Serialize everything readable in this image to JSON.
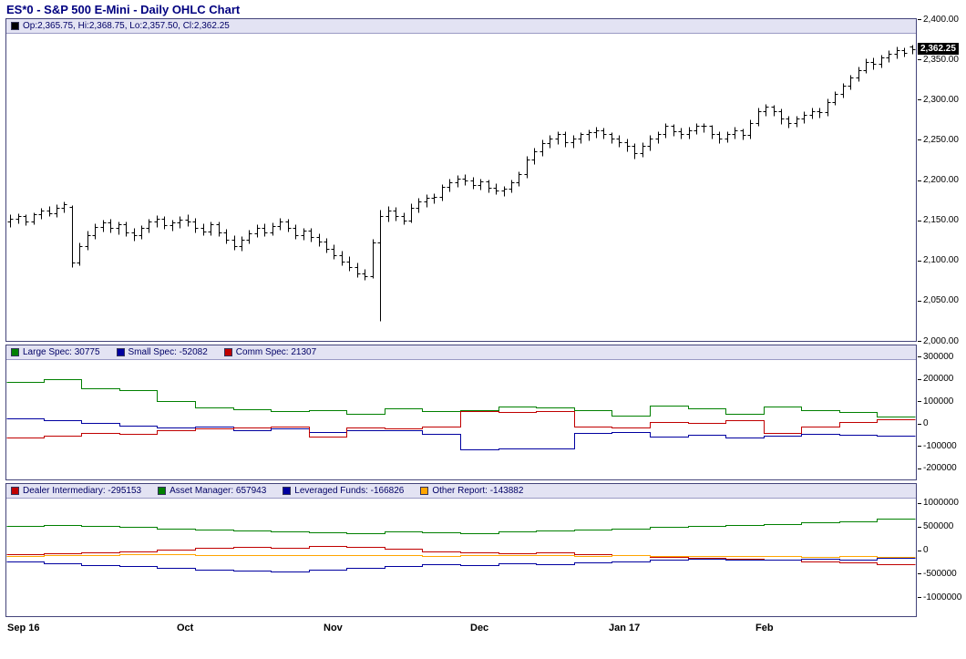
{
  "title": "ES*0 - S&P 500 E-Mini - Daily OHLC Chart",
  "last_price_flag": "2,362.25",
  "colors": {
    "bar": "#000000",
    "large_spec": "#008000",
    "small_spec": "#0000A0",
    "comm_spec": "#C00000",
    "dealer": "#C00000",
    "asset_manager": "#008000",
    "leveraged": "#0000A0",
    "other": "#FFA500"
  },
  "chart_data": [
    {
      "type": "ohlc",
      "panel": "price",
      "legend": "Op:2,365.75, Hi:2,368.75, Lo:2,357.50, Cl:2,362.25",
      "last_open": 2365.75,
      "last_high": 2368.75,
      "last_low": 2357.5,
      "last_close": 2362.25,
      "ylim": [
        2000,
        2400
      ],
      "yticks": [
        {
          "v": 2400,
          "label": "2,400.00"
        },
        {
          "v": 2350,
          "label": "2,350.00"
        },
        {
          "v": 2300,
          "label": "2,300.00"
        },
        {
          "v": 2250,
          "label": "2,250.00"
        },
        {
          "v": 2200,
          "label": "2,200.00"
        },
        {
          "v": 2150,
          "label": "2,150.00"
        },
        {
          "v": 2100,
          "label": "2,100.00"
        },
        {
          "v": 2050,
          "label": "2,050.00"
        },
        {
          "v": 2000,
          "label": "2,000.00"
        }
      ],
      "xticks": [
        {
          "label": "Sep 16",
          "bar_index": 0
        },
        {
          "label": "Oct",
          "bar_index": 22
        },
        {
          "label": "Nov",
          "bar_index": 41
        },
        {
          "label": "Dec",
          "bar_index": 60
        },
        {
          "label": "Jan 17",
          "bar_index": 78
        },
        {
          "label": "Feb",
          "bar_index": 97
        }
      ],
      "ohlc": [
        [
          2148,
          2157,
          2142,
          2152
        ],
        [
          2152,
          2159,
          2146,
          2155
        ],
        [
          2155,
          2158,
          2144,
          2148
        ],
        [
          2148,
          2160,
          2145,
          2157
        ],
        [
          2157,
          2166,
          2152,
          2162
        ],
        [
          2162,
          2168,
          2155,
          2159
        ],
        [
          2159,
          2170,
          2154,
          2166
        ],
        [
          2166,
          2173,
          2160,
          2170
        ],
        [
          2167,
          2169,
          2092,
          2098
        ],
        [
          2098,
          2122,
          2094,
          2118
        ],
        [
          2118,
          2137,
          2113,
          2132
        ],
        [
          2132,
          2146,
          2127,
          2142
        ],
        [
          2142,
          2151,
          2136,
          2147
        ],
        [
          2147,
          2152,
          2135,
          2140
        ],
        [
          2140,
          2149,
          2133,
          2145
        ],
        [
          2145,
          2148,
          2130,
          2135
        ],
        [
          2135,
          2141,
          2125,
          2131
        ],
        [
          2131,
          2144,
          2127,
          2140
        ],
        [
          2140,
          2152,
          2135,
          2148
        ],
        [
          2148,
          2156,
          2142,
          2152
        ],
        [
          2152,
          2155,
          2139,
          2144
        ],
        [
          2144,
          2151,
          2137,
          2147
        ],
        [
          2147,
          2155,
          2141,
          2151
        ],
        [
          2151,
          2157,
          2143,
          2149
        ],
        [
          2149,
          2153,
          2135,
          2140
        ],
        [
          2140,
          2146,
          2131,
          2136
        ],
        [
          2136,
          2149,
          2132,
          2145
        ],
        [
          2145,
          2148,
          2130,
          2135
        ],
        [
          2135,
          2139,
          2121,
          2126
        ],
        [
          2126,
          2131,
          2113,
          2118
        ],
        [
          2118,
          2130,
          2112,
          2126
        ],
        [
          2126,
          2138,
          2121,
          2134
        ],
        [
          2134,
          2145,
          2129,
          2141
        ],
        [
          2141,
          2146,
          2130,
          2135
        ],
        [
          2135,
          2147,
          2131,
          2143
        ],
        [
          2143,
          2153,
          2138,
          2149
        ],
        [
          2149,
          2152,
          2136,
          2141
        ],
        [
          2141,
          2145,
          2127,
          2132
        ],
        [
          2132,
          2141,
          2126,
          2137
        ],
        [
          2137,
          2140,
          2124,
          2129
        ],
        [
          2129,
          2134,
          2118,
          2123
        ],
        [
          2123,
          2128,
          2110,
          2115
        ],
        [
          2115,
          2120,
          2102,
          2107
        ],
        [
          2107,
          2112,
          2094,
          2099
        ],
        [
          2099,
          2105,
          2087,
          2092
        ],
        [
          2092,
          2097,
          2079,
          2084
        ],
        [
          2084,
          2090,
          2076,
          2081
        ],
        [
          2081,
          2127,
          2078,
          2122
        ],
        [
          2122,
          2163,
          2025,
          2155
        ],
        [
          2155,
          2168,
          2148,
          2162
        ],
        [
          2162,
          2167,
          2150,
          2155
        ],
        [
          2155,
          2160,
          2145,
          2150
        ],
        [
          2150,
          2171,
          2147,
          2166
        ],
        [
          2166,
          2178,
          2160,
          2173
        ],
        [
          2173,
          2182,
          2167,
          2178
        ],
        [
          2178,
          2184,
          2171,
          2179
        ],
        [
          2179,
          2195,
          2175,
          2191
        ],
        [
          2191,
          2202,
          2186,
          2197
        ],
        [
          2197,
          2206,
          2192,
          2202
        ],
        [
          2202,
          2207,
          2194,
          2199
        ],
        [
          2199,
          2204,
          2189,
          2194
        ],
        [
          2194,
          2202,
          2188,
          2198
        ],
        [
          2198,
          2201,
          2185,
          2190
        ],
        [
          2190,
          2196,
          2182,
          2187
        ],
        [
          2187,
          2193,
          2180,
          2189
        ],
        [
          2189,
          2201,
          2185,
          2197
        ],
        [
          2197,
          2211,
          2193,
          2207
        ],
        [
          2207,
          2230,
          2203,
          2226
        ],
        [
          2226,
          2240,
          2220,
          2236
        ],
        [
          2236,
          2250,
          2230,
          2246
        ],
        [
          2246,
          2256,
          2240,
          2252
        ],
        [
          2252,
          2261,
          2245,
          2257
        ],
        [
          2257,
          2261,
          2241,
          2247
        ],
        [
          2247,
          2256,
          2240,
          2252
        ],
        [
          2252,
          2260,
          2246,
          2257
        ],
        [
          2257,
          2263,
          2249,
          2259
        ],
        [
          2259,
          2266,
          2253,
          2262
        ],
        [
          2262,
          2265,
          2251,
          2257
        ],
        [
          2257,
          2260,
          2246,
          2252
        ],
        [
          2252,
          2256,
          2241,
          2247
        ],
        [
          2247,
          2251,
          2236,
          2242
        ],
        [
          2242,
          2246,
          2227,
          2233
        ],
        [
          2233,
          2247,
          2229,
          2243
        ],
        [
          2243,
          2256,
          2237,
          2252
        ],
        [
          2252,
          2261,
          2246,
          2257
        ],
        [
          2257,
          2271,
          2253,
          2267
        ],
        [
          2267,
          2270,
          2255,
          2261
        ],
        [
          2261,
          2265,
          2251,
          2257
        ],
        [
          2257,
          2266,
          2252,
          2262
        ],
        [
          2262,
          2271,
          2257,
          2267
        ],
        [
          2267,
          2271,
          2259,
          2267
        ],
        [
          2267,
          2269,
          2251,
          2257
        ],
        [
          2257,
          2261,
          2246,
          2252
        ],
        [
          2252,
          2261,
          2247,
          2257
        ],
        [
          2257,
          2266,
          2252,
          2262
        ],
        [
          2262,
          2264,
          2250,
          2256
        ],
        [
          2256,
          2275,
          2252,
          2271
        ],
        [
          2271,
          2290,
          2267,
          2286
        ],
        [
          2286,
          2295,
          2280,
          2291
        ],
        [
          2291,
          2293,
          2280,
          2286
        ],
        [
          2286,
          2289,
          2270,
          2276
        ],
        [
          2276,
          2280,
          2265,
          2271
        ],
        [
          2271,
          2280,
          2266,
          2276
        ],
        [
          2276,
          2285,
          2271,
          2281
        ],
        [
          2281,
          2290,
          2276,
          2286
        ],
        [
          2286,
          2290,
          2278,
          2284
        ],
        [
          2284,
          2301,
          2280,
          2297
        ],
        [
          2297,
          2311,
          2293,
          2307
        ],
        [
          2307,
          2321,
          2303,
          2317
        ],
        [
          2317,
          2331,
          2313,
          2327
        ],
        [
          2327,
          2341,
          2323,
          2337
        ],
        [
          2337,
          2351,
          2333,
          2347
        ],
        [
          2347,
          2352,
          2338,
          2344
        ],
        [
          2344,
          2356,
          2340,
          2352
        ],
        [
          2352,
          2361,
          2347,
          2357
        ],
        [
          2357,
          2366,
          2351,
          2362
        ],
        [
          2362,
          2365,
          2353,
          2358
        ],
        [
          2365.75,
          2368.75,
          2357.5,
          2362.25
        ]
      ]
    },
    {
      "type": "step",
      "panel": "commitment-of-traders",
      "ylim": [
        -250000,
        350000
      ],
      "yticks": [
        {
          "v": 300000,
          "label": "300000"
        },
        {
          "v": 200000,
          "label": "200000"
        },
        {
          "v": 100000,
          "label": "100000"
        },
        {
          "v": 0,
          "label": "0"
        },
        {
          "v": -100000,
          "label": "-100000"
        },
        {
          "v": -200000,
          "label": "-200000"
        }
      ],
      "series": [
        {
          "name": "Large Spec",
          "value": 30775,
          "label": "Large Spec: 30775",
          "color_key": "large_spec",
          "values": [
            185000,
            200000,
            160000,
            148000,
            100000,
            72000,
            65000,
            55000,
            60000,
            45000,
            70000,
            55000,
            62000,
            78000,
            72000,
            60000,
            35000,
            80000,
            68000,
            42000,
            76000,
            60000,
            52000,
            30775
          ]
        },
        {
          "name": "Small Spec",
          "value": -52082,
          "label": "Small Spec: -52082",
          "color_key": "small_spec",
          "values": [
            25000,
            15000,
            5000,
            -8000,
            -18000,
            -12000,
            -28000,
            -22000,
            -38000,
            -30000,
            -28000,
            -45000,
            -115000,
            -110000,
            -112000,
            -42000,
            -38000,
            -58000,
            -52000,
            -62000,
            -55000,
            -45000,
            -50000,
            -52082
          ]
        },
        {
          "name": "Comm Spec",
          "value": 21307,
          "label": "Comm Spec: 21307",
          "color_key": "comm_spec",
          "values": [
            -62000,
            -55000,
            -42000,
            -45000,
            -28000,
            -22000,
            -18000,
            -12000,
            -58000,
            -18000,
            -22000,
            -12000,
            58000,
            54000,
            58000,
            -12000,
            -18000,
            8000,
            5000,
            15000,
            -42000,
            -12000,
            8000,
            21307
          ]
        }
      ]
    },
    {
      "type": "step",
      "panel": "disaggregated-report",
      "ylim": [
        -1400000,
        1400000
      ],
      "yticks": [
        {
          "v": 1000000,
          "label": "1000000"
        },
        {
          "v": 500000,
          "label": "500000"
        },
        {
          "v": 0,
          "label": "0"
        },
        {
          "v": -500000,
          "label": "-500000"
        },
        {
          "v": -1000000,
          "label": "-1000000"
        }
      ],
      "series": [
        {
          "name": "Dealer Intermediary",
          "value": -295153,
          "label": "Dealer Intermediary: -295153",
          "color_key": "dealer",
          "values": [
            -80000,
            -60000,
            -40000,
            -20000,
            10000,
            40000,
            70000,
            50000,
            90000,
            60000,
            30000,
            -20000,
            -40000,
            -70000,
            -50000,
            -90000,
            -110000,
            -140000,
            -160000,
            -180000,
            -210000,
            -240000,
            -270000,
            -295153
          ]
        },
        {
          "name": "Asset Manager",
          "value": 657943,
          "label": "Asset Manager: 657943",
          "color_key": "asset_manager",
          "values": [
            520000,
            540000,
            520000,
            490000,
            460000,
            430000,
            410000,
            390000,
            370000,
            360000,
            390000,
            375000,
            365000,
            390000,
            410000,
            435000,
            460000,
            490000,
            515000,
            535000,
            555000,
            580000,
            600000,
            657943
          ]
        },
        {
          "name": "Leveraged Funds",
          "value": -166826,
          "label": "Leveraged Funds: -166826",
          "color_key": "leveraged",
          "values": [
            -250000,
            -280000,
            -310000,
            -340000,
            -370000,
            -410000,
            -440000,
            -460000,
            -420000,
            -380000,
            -340000,
            -300000,
            -320000,
            -280000,
            -300000,
            -270000,
            -240000,
            -200000,
            -180000,
            -195000,
            -205000,
            -185000,
            -195000,
            -166826
          ]
        },
        {
          "name": "Other Report",
          "value": -143882,
          "label": "Other Report: -143882",
          "color_key": "other",
          "values": [
            -120000,
            -110000,
            -100000,
            -90000,
            -95000,
            -110000,
            -100000,
            -115000,
            -105000,
            -100000,
            -110000,
            -120000,
            -110000,
            -100000,
            -110000,
            -120000,
            -112000,
            -118000,
            -125000,
            -120000,
            -128000,
            -138000,
            -132000,
            -143882
          ]
        }
      ]
    }
  ]
}
